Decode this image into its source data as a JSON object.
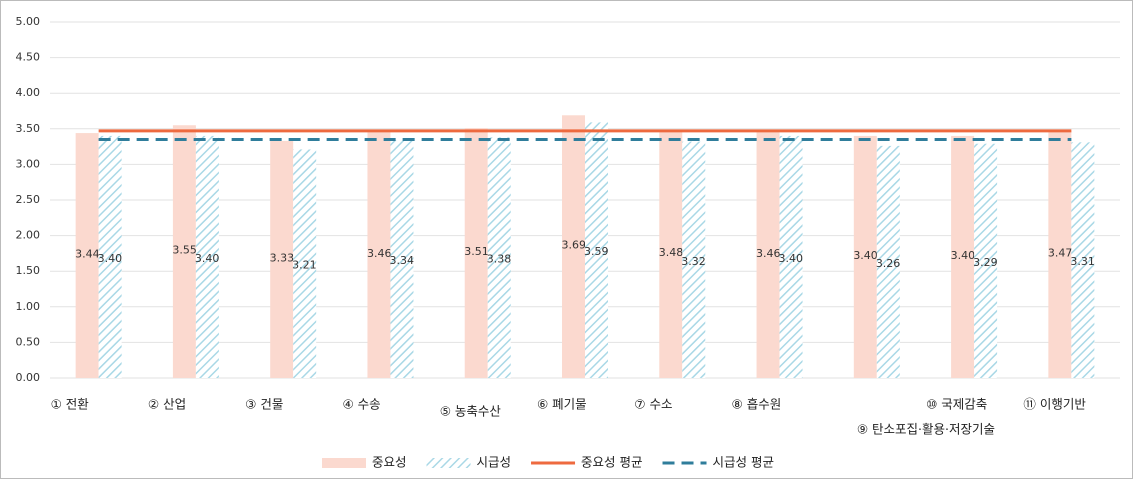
{
  "chart_data": {
    "type": "bar",
    "categories": [
      "① 전환",
      "② 산업",
      "③ 건물",
      "④ 수송",
      "⑤ 농축수산",
      "⑥ 폐기물",
      "⑦ 수소",
      "⑧ 흡수원",
      "⑨ 탄소포집·활용·저장기술",
      "⑩ 국제감축",
      "⑪ 이행기반"
    ],
    "series": [
      {
        "name": "중요성",
        "color": "#fbd9cf",
        "pattern": "solid",
        "values": [
          3.44,
          3.55,
          3.33,
          3.46,
          3.51,
          3.69,
          3.48,
          3.46,
          3.4,
          3.4,
          3.47
        ],
        "value_labels": [
          "3.44",
          "3.55",
          "3.33",
          "3.46",
          "3.51",
          "3.69",
          "3.48",
          "3.46",
          "3.40",
          "3.40",
          "3.47"
        ]
      },
      {
        "name": "시급성",
        "color": "#a9d8e6",
        "pattern": "hatch",
        "values": [
          3.4,
          3.4,
          3.21,
          3.34,
          3.38,
          3.59,
          3.32,
          3.4,
          3.26,
          3.29,
          3.31
        ],
        "value_labels": [
          "3.40",
          "3.40",
          "3.21",
          "3.34",
          "3.38",
          "3.59",
          "3.32",
          "3.40",
          "3.26",
          "3.29",
          "3.31"
        ]
      }
    ],
    "reference_lines": [
      {
        "name": "중요성 평균",
        "color": "#ee6a3f",
        "dash": false,
        "value": 3.47
      },
      {
        "name": "시급성 평균",
        "color": "#2f7d9b",
        "dash": true,
        "value": 3.35
      }
    ],
    "ylim": [
      0,
      5
    ],
    "yticks": [
      {
        "value": 0,
        "label": "0.00"
      },
      {
        "value": 0.5,
        "label": "0.50"
      },
      {
        "value": 1,
        "label": "1.00"
      },
      {
        "value": 1.5,
        "label": "1.50"
      },
      {
        "value": 2,
        "label": "2.00"
      },
      {
        "value": 2.5,
        "label": "2.50"
      },
      {
        "value": 3,
        "label": "3.00"
      },
      {
        "value": 3.5,
        "label": "3.50"
      },
      {
        "value": 4,
        "label": "4.00"
      },
      {
        "value": 4.5,
        "label": "4.50"
      },
      {
        "value": 5,
        "label": "5.00"
      }
    ],
    "grid": true
  }
}
